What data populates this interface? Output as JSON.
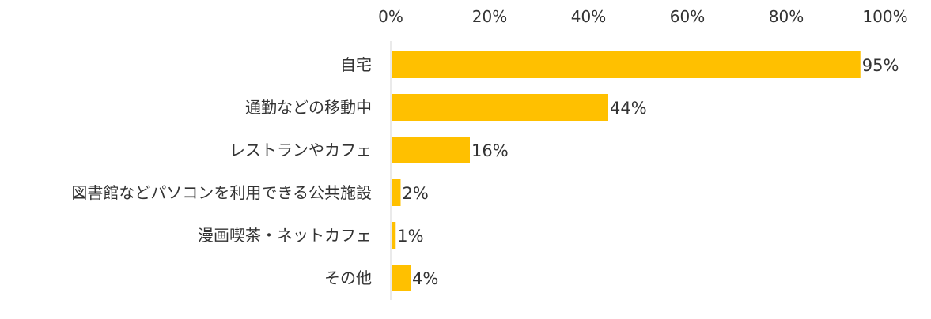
{
  "chart_data": {
    "type": "bar",
    "orientation": "horizontal",
    "categories": [
      "自宅",
      "通勤などの移動中",
      "レストランやカフェ",
      "図書館などパソコンを利用できる公共施設",
      "漫画喫茶・ネットカフェ",
      "その他"
    ],
    "values": [
      95,
      44,
      16,
      2,
      1,
      4
    ],
    "value_labels": [
      "95%",
      "44%",
      "16%",
      "2%",
      "1%",
      "4%"
    ],
    "xlim": [
      0,
      100
    ],
    "xticks": [
      0,
      20,
      40,
      60,
      80,
      100
    ],
    "xtick_labels": [
      "0%",
      "20%",
      "40%",
      "60%",
      "80%",
      "100%"
    ],
    "axis_position": "top",
    "grid": false,
    "legend": false,
    "bar_color": "#FFC000"
  }
}
